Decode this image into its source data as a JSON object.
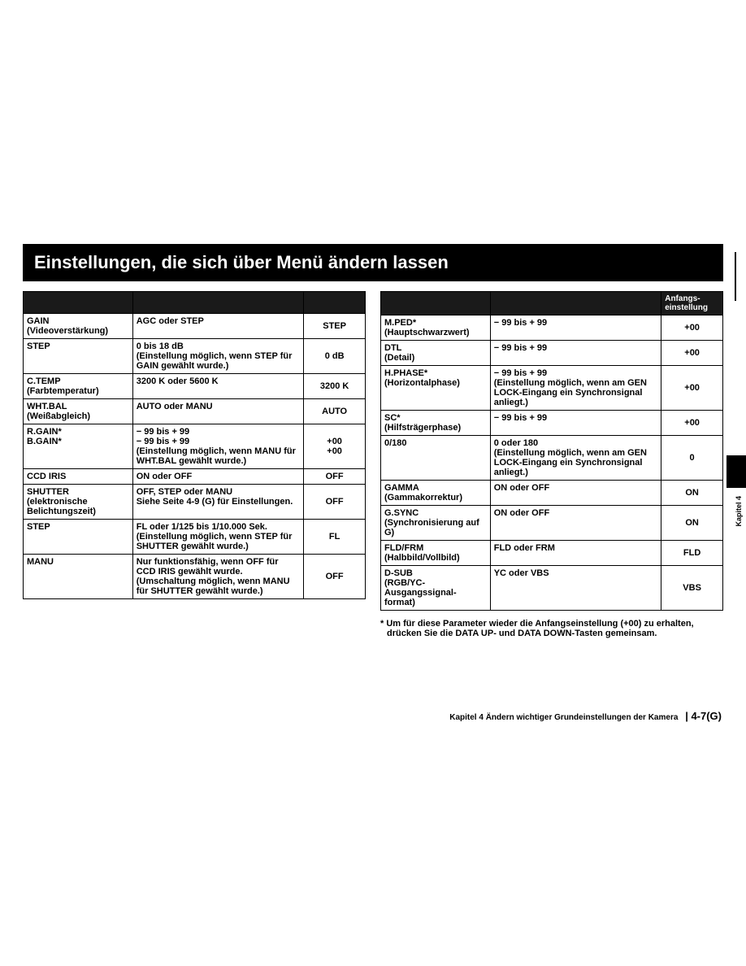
{
  "title": "Einstellungen, die sich über Menü ändern lassen",
  "leftTable": {
    "head": [
      "",
      "",
      ""
    ],
    "rows": [
      {
        "p": "GAIN",
        "s": "(Videoverstärkung)",
        "d": "AGC oder STEP",
        "v": "STEP"
      },
      {
        "p": "STEP",
        "s": "",
        "d": "0 bis 18 dB\n(Einstellung möglich, wenn STEP für GAIN gewählt wurde.)",
        "v": "0 dB"
      },
      {
        "p": "C.TEMP",
        "s": "(Farbtemperatur)",
        "d": "3200 K oder 5600 K",
        "v": "3200 K"
      },
      {
        "p": "WHT.BAL",
        "s": "(Weißabgleich)",
        "d": "AUTO oder MANU",
        "v": "AUTO"
      },
      {
        "p": "R.GAIN*\nB.GAIN*",
        "s": "",
        "d": "− 99 bis + 99\n− 99 bis + 99\n(Einstellung möglich, wenn MANU für WHT.BAL gewählt wurde.)",
        "v": "+00\n+00"
      },
      {
        "p": "CCD IRIS",
        "s": "",
        "d": "ON oder OFF",
        "v": "OFF"
      },
      {
        "p": "SHUTTER",
        "s": "(elektronische Belichtungszeit)",
        "d": "OFF, STEP oder MANU\nSiehe Seite 4-9 (G) für Einstellungen.",
        "v": "OFF"
      },
      {
        "p": "STEP",
        "s": "",
        "d": "FL oder 1/125 bis 1/10.000 Sek.\n(Einstellung möglich, wenn STEP für SHUTTER gewählt wurde.)",
        "v": "FL"
      },
      {
        "p": "MANU",
        "s": "",
        "d": "Nur funktionsfähig, wenn OFF für CCD IRIS gewählt wurde.\n(Umschaltung möglich, wenn MANU für SHUTTER gewählt wurde.)",
        "v": "OFF"
      }
    ]
  },
  "rightTable": {
    "head": [
      "",
      "",
      "Anfangs-\neinstellung"
    ],
    "rows": [
      {
        "p": "M.PED*",
        "s": "(Hauptschwarzwert)",
        "d": "− 99 bis + 99",
        "v": "+00"
      },
      {
        "p": "DTL",
        "s": "(Detail)",
        "d": "− 99 bis + 99",
        "v": "+00"
      },
      {
        "p": "H.PHASE*",
        "s": "(Horizontalphase)",
        "d": "− 99 bis + 99\n(Einstellung möglich, wenn am GEN LOCK-Eingang ein Synchronsignal anliegt.)",
        "v": "+00"
      },
      {
        "p": "SC*",
        "s": "(Hilfsträgerphase)",
        "d": "− 99 bis + 99",
        "v": "+00"
      },
      {
        "p": "0/180",
        "s": "",
        "d": "0 oder 180\n(Einstellung möglich, wenn am GEN LOCK-Eingang ein Synchronsignal anliegt.)",
        "v": "0"
      },
      {
        "p": "GAMMA",
        "s": "(Gammakorrektur)",
        "d": "ON oder OFF",
        "v": "ON"
      },
      {
        "p": "G.SYNC",
        "s": "(Synchronisierung auf G)",
        "d": "ON oder OFF",
        "v": "ON"
      },
      {
        "p": "FLD/FRM",
        "s": "(Halbbild/Vollbild)",
        "d": "FLD oder FRM",
        "v": "FLD"
      },
      {
        "p": "D-SUB",
        "s": "(RGB/YC-Ausgangssignal-format)",
        "d": "YC oder VBS",
        "v": "VBS"
      }
    ]
  },
  "footnote": "* Um für diese Parameter wieder die Anfangseinstellung (+00) zu erhalten, drücken Sie die DATA UP- und DATA DOWN-Tasten gemeinsam.",
  "footer": {
    "chapter": "Kapitel 4   Ändern wichtiger Grundeinstellungen der Kamera",
    "page": "4-7(G)"
  },
  "sideLabel": "Kapitel 4"
}
